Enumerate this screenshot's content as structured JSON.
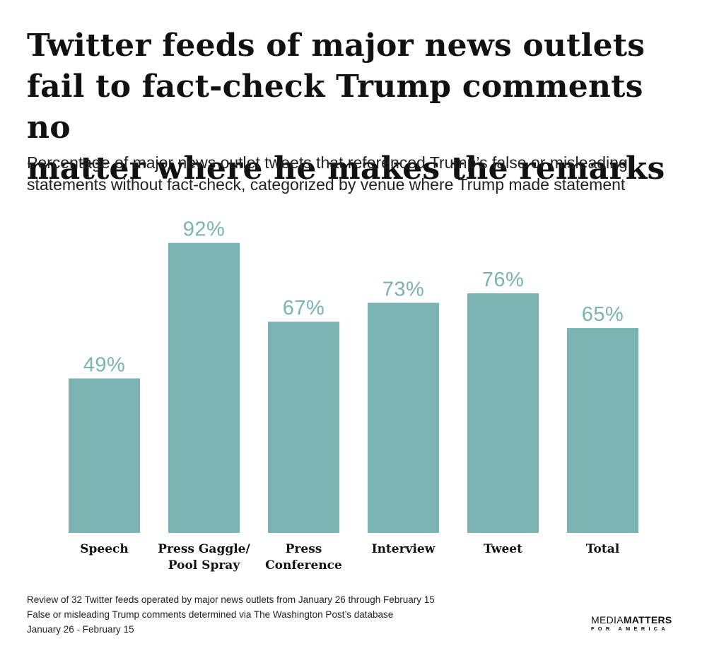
{
  "header": {
    "title_lines": [
      "Twitter feeds of major news outlets",
      "fail to fact-check Trump comments no",
      "matter where he makes the remarks"
    ],
    "subtitle_lines": [
      "Percentage of major news outlet tweets that referenced Trump’s false or misleading",
      "statements without fact-check, categorized by venue where Trump made statement"
    ]
  },
  "chart_data": {
    "type": "bar",
    "categories": [
      [
        "Speech"
      ],
      [
        "Press Gaggle/",
        "Pool Spray"
      ],
      [
        "Press",
        "Conference"
      ],
      [
        "Interview"
      ],
      [
        "Tweet"
      ],
      [
        "Total"
      ]
    ],
    "values": [
      49,
      92,
      67,
      73,
      76,
      65
    ],
    "value_labels": [
      "49%",
      "92%",
      "67%",
      "73%",
      "76%",
      "65%"
    ],
    "unit": "%",
    "ylim": [
      0,
      100
    ],
    "grid": false,
    "bar_color": "#7ab3b1",
    "label_color": "#7ab3b1"
  },
  "footer": {
    "notes": [
      "Review of 32 Twitter feeds operated by major news outlets from January 26 through February 15",
      "False or misleading Trump comments determined via The Washington Post’s database",
      "January 26 - February 15"
    ]
  },
  "logo": {
    "word1": "MEDIA",
    "word2": "MATTERS",
    "sub": "FOR AMERICA"
  }
}
